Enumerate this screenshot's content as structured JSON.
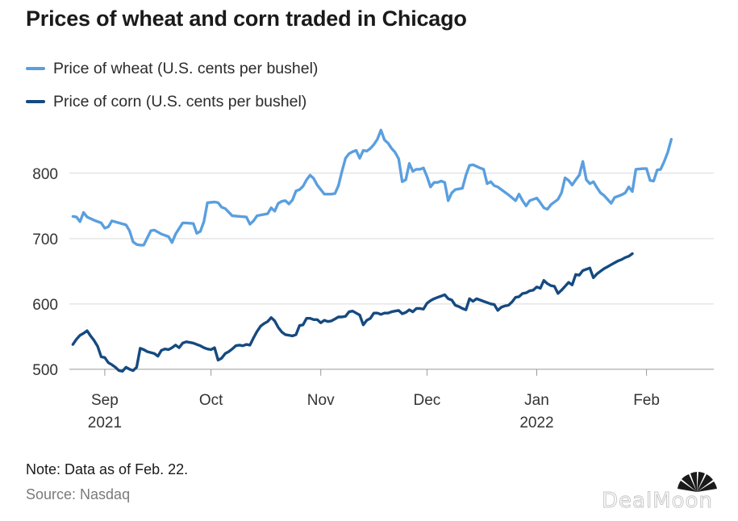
{
  "title": "Prices of wheat and corn traded in Chicago",
  "note": "Note: Data as of Feb. 22.",
  "source": "Source: Nasdaq",
  "watermark": "DealMoon",
  "logo_icon": "cnbc-peacock-icon",
  "colors": {
    "wheat": "#5a9fdf",
    "corn": "#154a80",
    "grid": "#d9d9d9",
    "axis_text": "#333333"
  },
  "chart_data": {
    "type": "line",
    "title": "Prices of wheat and corn traded in Chicago",
    "xlabel": "",
    "ylabel": "",
    "ylim": [
      485,
      880
    ],
    "yticks": [
      500,
      600,
      700,
      800
    ],
    "xlim": [
      -10,
      172
    ],
    "xticks": [
      {
        "x": 0,
        "label": "Sep",
        "sublabel": "2021"
      },
      {
        "x": 30,
        "label": "Oct",
        "sublabel": ""
      },
      {
        "x": 61,
        "label": "Nov",
        "sublabel": ""
      },
      {
        "x": 91,
        "label": "Dec",
        "sublabel": ""
      },
      {
        "x": 122,
        "label": "Jan",
        "sublabel": "2022"
      },
      {
        "x": 153,
        "label": "Feb",
        "sublabel": ""
      }
    ],
    "legend": "top-left",
    "grid": true,
    "series": [
      {
        "name": "Price of wheat (U.S. cents per bushel)",
        "color_key": "wheat",
        "points": [
          [
            -9,
            734
          ],
          [
            -8,
            733
          ],
          [
            -7,
            726
          ],
          [
            -6,
            740
          ],
          [
            -5,
            733
          ],
          [
            -3,
            728
          ],
          [
            -1,
            724
          ],
          [
            0,
            716
          ],
          [
            1,
            718
          ],
          [
            2,
            727
          ],
          [
            4,
            724
          ],
          [
            6,
            721
          ],
          [
            7,
            712
          ],
          [
            8,
            695
          ],
          [
            9,
            691
          ],
          [
            10,
            690
          ],
          [
            11,
            690
          ],
          [
            13,
            712
          ],
          [
            14,
            713
          ],
          [
            16,
            707
          ],
          [
            18,
            703
          ],
          [
            19,
            694
          ],
          [
            20,
            707
          ],
          [
            22,
            724
          ],
          [
            23,
            724
          ],
          [
            25,
            723
          ],
          [
            26,
            708
          ],
          [
            27,
            711
          ],
          [
            28,
            726
          ],
          [
            29,
            755
          ],
          [
            31,
            756
          ],
          [
            32,
            755
          ],
          [
            33,
            748
          ],
          [
            34,
            746
          ],
          [
            36,
            735
          ],
          [
            38,
            734
          ],
          [
            40,
            733
          ],
          [
            41,
            722
          ],
          [
            42,
            727
          ],
          [
            43,
            735
          ],
          [
            45,
            737
          ],
          [
            46,
            738
          ],
          [
            47,
            747
          ],
          [
            48,
            742
          ],
          [
            49,
            754
          ],
          [
            50,
            757
          ],
          [
            51,
            758
          ],
          [
            52,
            753
          ],
          [
            53,
            759
          ],
          [
            54,
            773
          ],
          [
            55,
            775
          ],
          [
            56,
            780
          ],
          [
            57,
            790
          ],
          [
            58,
            797
          ],
          [
            59,
            792
          ],
          [
            60,
            782
          ],
          [
            61,
            775
          ],
          [
            62,
            768
          ],
          [
            64,
            768
          ],
          [
            65,
            769
          ],
          [
            66,
            781
          ],
          [
            67,
            803
          ],
          [
            68,
            823
          ],
          [
            69,
            830
          ],
          [
            70,
            833
          ],
          [
            71,
            835
          ],
          [
            72,
            823
          ],
          [
            73,
            835
          ],
          [
            74,
            834
          ],
          [
            75,
            838
          ],
          [
            76,
            844
          ],
          [
            77,
            852
          ],
          [
            78,
            866
          ],
          [
            79,
            851
          ],
          [
            80,
            846
          ],
          [
            81,
            838
          ],
          [
            82,
            832
          ],
          [
            83,
            822
          ],
          [
            84,
            787
          ],
          [
            85,
            790
          ],
          [
            86,
            815
          ],
          [
            87,
            803
          ],
          [
            88,
            806
          ],
          [
            89,
            806
          ],
          [
            90,
            808
          ],
          [
            91,
            795
          ],
          [
            92,
            779
          ],
          [
            93,
            786
          ],
          [
            94,
            786
          ],
          [
            95,
            788
          ],
          [
            96,
            786
          ],
          [
            97,
            758
          ],
          [
            98,
            770
          ],
          [
            99,
            775
          ],
          [
            101,
            777
          ],
          [
            102,
            797
          ],
          [
            103,
            812
          ],
          [
            104,
            813
          ],
          [
            106,
            808
          ],
          [
            107,
            806
          ],
          [
            108,
            784
          ],
          [
            109,
            787
          ],
          [
            110,
            781
          ],
          [
            111,
            779
          ],
          [
            112,
            775
          ],
          [
            114,
            767
          ],
          [
            116,
            758
          ],
          [
            117,
            768
          ],
          [
            118,
            758
          ],
          [
            119,
            750
          ],
          [
            120,
            758
          ],
          [
            121,
            760
          ],
          [
            122,
            762
          ],
          [
            123,
            755
          ],
          [
            124,
            747
          ],
          [
            125,
            745
          ],
          [
            126,
            752
          ],
          [
            128,
            760
          ],
          [
            129,
            770
          ],
          [
            130,
            793
          ],
          [
            131,
            789
          ],
          [
            132,
            782
          ],
          [
            133,
            790
          ],
          [
            134,
            797
          ],
          [
            135,
            818
          ],
          [
            136,
            790
          ],
          [
            137,
            784
          ],
          [
            138,
            787
          ],
          [
            139,
            778
          ],
          [
            140,
            770
          ],
          [
            141,
            766
          ],
          [
            142,
            760
          ],
          [
            143,
            754
          ],
          [
            144,
            763
          ],
          [
            146,
            767
          ],
          [
            147,
            770
          ],
          [
            148,
            779
          ],
          [
            149,
            772
          ],
          [
            150,
            806
          ],
          [
            152,
            807
          ],
          [
            153,
            807
          ],
          [
            154,
            789
          ],
          [
            155,
            788
          ],
          [
            156,
            805
          ],
          [
            157,
            806
          ],
          [
            158,
            818
          ],
          [
            159,
            832
          ],
          [
            160,
            852
          ]
        ]
      },
      {
        "name": "Price of corn (U.S. cents per bushel)",
        "color_key": "corn",
        "points": [
          [
            -9,
            538
          ],
          [
            -8,
            546
          ],
          [
            -7,
            552
          ],
          [
            -6,
            555
          ],
          [
            -5,
            559
          ],
          [
            -4,
            551
          ],
          [
            -3,
            544
          ],
          [
            -2,
            535
          ],
          [
            -1,
            519
          ],
          [
            0,
            518
          ],
          [
            1,
            510
          ],
          [
            2,
            507
          ],
          [
            3,
            503
          ],
          [
            4,
            498
          ],
          [
            5,
            497
          ],
          [
            6,
            503
          ],
          [
            7,
            500
          ],
          [
            8,
            498
          ],
          [
            9,
            503
          ],
          [
            10,
            532
          ],
          [
            11,
            530
          ],
          [
            12,
            527
          ],
          [
            14,
            524
          ],
          [
            15,
            520
          ],
          [
            16,
            529
          ],
          [
            17,
            531
          ],
          [
            18,
            530
          ],
          [
            19,
            533
          ],
          [
            20,
            537
          ],
          [
            21,
            533
          ],
          [
            22,
            540
          ],
          [
            23,
            542
          ],
          [
            24,
            541
          ],
          [
            25,
            540
          ],
          [
            26,
            538
          ],
          [
            27,
            536
          ],
          [
            28,
            533
          ],
          [
            29,
            531
          ],
          [
            30,
            530
          ],
          [
            31,
            533
          ],
          [
            32,
            514
          ],
          [
            33,
            517
          ],
          [
            34,
            524
          ],
          [
            35,
            527
          ],
          [
            36,
            531
          ],
          [
            37,
            536
          ],
          [
            38,
            537
          ],
          [
            39,
            536
          ],
          [
            40,
            538
          ],
          [
            41,
            537
          ],
          [
            42,
            548
          ],
          [
            43,
            558
          ],
          [
            44,
            566
          ],
          [
            45,
            570
          ],
          [
            46,
            573
          ],
          [
            47,
            579
          ],
          [
            48,
            574
          ],
          [
            49,
            564
          ],
          [
            50,
            557
          ],
          [
            51,
            553
          ],
          [
            52,
            552
          ],
          [
            53,
            551
          ],
          [
            54,
            553
          ],
          [
            55,
            567
          ],
          [
            56,
            568
          ],
          [
            57,
            578
          ],
          [
            58,
            578
          ],
          [
            59,
            576
          ],
          [
            60,
            576
          ],
          [
            61,
            571
          ],
          [
            62,
            575
          ],
          [
            63,
            573
          ],
          [
            64,
            574
          ],
          [
            65,
            577
          ],
          [
            66,
            580
          ],
          [
            67,
            580
          ],
          [
            68,
            581
          ],
          [
            69,
            588
          ],
          [
            70,
            589
          ],
          [
            71,
            586
          ],
          [
            72,
            583
          ],
          [
            73,
            568
          ],
          [
            74,
            575
          ],
          [
            75,
            578
          ],
          [
            76,
            586
          ],
          [
            77,
            586
          ],
          [
            78,
            584
          ],
          [
            79,
            586
          ],
          [
            80,
            586
          ],
          [
            81,
            588
          ],
          [
            82,
            589
          ],
          [
            83,
            590
          ],
          [
            84,
            585
          ],
          [
            85,
            587
          ],
          [
            86,
            591
          ],
          [
            87,
            588
          ],
          [
            88,
            593
          ],
          [
            89,
            593
          ],
          [
            90,
            592
          ],
          [
            91,
            601
          ],
          [
            92,
            605
          ],
          [
            93,
            608
          ],
          [
            94,
            610
          ],
          [
            95,
            612
          ],
          [
            96,
            614
          ],
          [
            97,
            608
          ],
          [
            98,
            606
          ],
          [
            99,
            598
          ],
          [
            100,
            596
          ],
          [
            101,
            593
          ],
          [
            102,
            591
          ],
          [
            103,
            608
          ],
          [
            104,
            604
          ],
          [
            105,
            608
          ],
          [
            106,
            606
          ],
          [
            107,
            604
          ],
          [
            108,
            602
          ],
          [
            109,
            600
          ],
          [
            110,
            599
          ],
          [
            111,
            590
          ],
          [
            112,
            595
          ],
          [
            113,
            597
          ],
          [
            114,
            598
          ],
          [
            115,
            603
          ],
          [
            116,
            610
          ],
          [
            117,
            611
          ],
          [
            118,
            616
          ],
          [
            119,
            617
          ],
          [
            120,
            620
          ],
          [
            121,
            621
          ],
          [
            122,
            626
          ],
          [
            123,
            624
          ],
          [
            124,
            636
          ],
          [
            125,
            631
          ],
          [
            126,
            628
          ],
          [
            127,
            627
          ],
          [
            128,
            616
          ],
          [
            129,
            621
          ],
          [
            130,
            627
          ],
          [
            131,
            633
          ],
          [
            132,
            629
          ],
          [
            133,
            645
          ],
          [
            134,
            644
          ],
          [
            135,
            651
          ],
          [
            136,
            653
          ],
          [
            137,
            655
          ],
          [
            138,
            640
          ],
          [
            139,
            646
          ],
          [
            140,
            650
          ],
          [
            141,
            654
          ],
          [
            142,
            657
          ],
          [
            143,
            660
          ],
          [
            144,
            663
          ],
          [
            145,
            666
          ],
          [
            146,
            668
          ],
          [
            147,
            671
          ],
          [
            148,
            673
          ],
          [
            149,
            677
          ]
        ]
      }
    ]
  }
}
